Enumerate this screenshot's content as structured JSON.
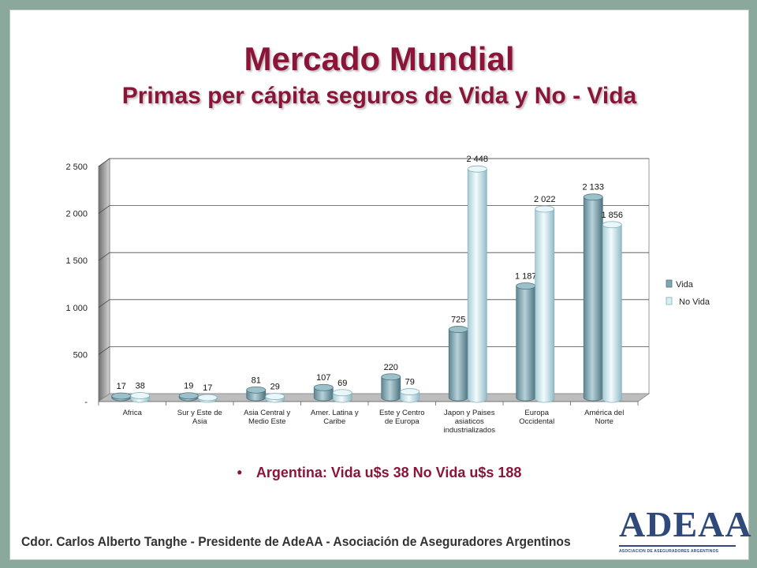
{
  "slide": {
    "title": "Mercado Mundial",
    "subtitle": "Primas per cápita  seguros de Vida y No - Vida",
    "bullet_symbol": "•",
    "bullet_text": "Argentina: Vida u$s 38   No Vida u$s 188",
    "footer": "Cdor. Carlos Alberto Tanghe - Presidente  de AdeAA - Asociación de Aseguradores Argentinos",
    "logo_text": "ADEAA",
    "logo_subtext": "ASOCIACION DE ASEGURADORES ARGENTINOS"
  },
  "colors": {
    "title": "#8b1538",
    "vida": "#7fa6b2",
    "no_vida": "#cfe8ee",
    "frame": "#8aa89b",
    "logo": "#2f4a7a"
  },
  "chart_data": {
    "type": "bar",
    "categories": [
      [
        "Africa"
      ],
      [
        "Sur y Este de",
        "Asia"
      ],
      [
        "Asia Central y",
        "Medio Este"
      ],
      [
        "Amer. Latina y",
        "Caribe"
      ],
      [
        "Este y Centro",
        "de Europa"
      ],
      [
        "Japon y Paises",
        "asiaticos",
        "industrializados"
      ],
      [
        "Europa",
        "Occidental"
      ],
      [
        "América del",
        "Norte"
      ]
    ],
    "series": [
      {
        "name": "Vida",
        "values": [
          17,
          19,
          81,
          107,
          220,
          725,
          1187,
          2133
        ],
        "labels": [
          "17",
          "19",
          "81",
          "107",
          "220",
          "725",
          "1 187",
          "2 133"
        ]
      },
      {
        "name": "No Vida",
        "values": [
          38,
          17,
          29,
          69,
          79,
          2448,
          2022,
          1856
        ],
        "labels": [
          "38",
          "17",
          "29",
          "69",
          "79",
          "2 448",
          "2 022",
          "1 856"
        ]
      }
    ],
    "yticks": [
      0,
      500,
      1000,
      1500,
      2000,
      2500
    ],
    "ytick_labels": [
      "-",
      "500",
      "1 000",
      "1 500",
      "2 000",
      "2 500"
    ],
    "ylim": [
      0,
      2500
    ],
    "grid": true,
    "legend": "right",
    "style": "3d-cylinder"
  }
}
